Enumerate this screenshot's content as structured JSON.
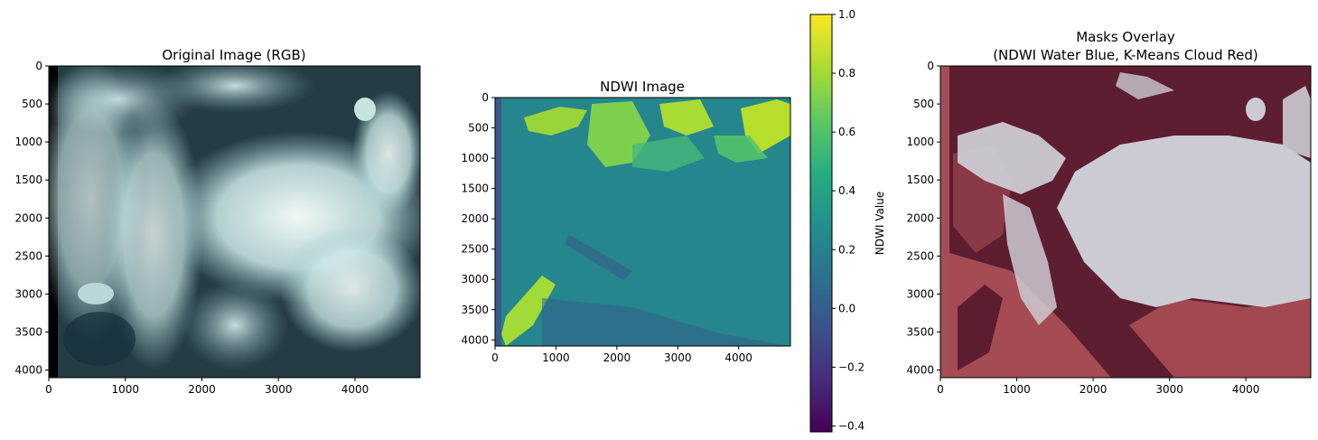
{
  "chart_data": [
    {
      "type": "image",
      "title": "Original Image (RGB)",
      "xlim": [
        0,
        4850
      ],
      "ylim": [
        4100,
        0
      ],
      "xticks": [
        0,
        1000,
        2000,
        3000,
        4000
      ],
      "yticks": [
        0,
        500,
        1000,
        1500,
        2000,
        2500,
        3000,
        3500,
        4000
      ],
      "image_description_colors": [
        "#0b1820",
        "#26404a",
        "#b9dde0",
        "#e6f5f3"
      ]
    },
    {
      "type": "heatmap",
      "title": "NDWI Image",
      "xlim": [
        0,
        4850
      ],
      "ylim": [
        4100,
        0
      ],
      "xticks": [
        0,
        1000,
        2000,
        3000,
        4000
      ],
      "yticks": [
        0,
        500,
        1000,
        1500,
        2000,
        2500,
        3000,
        3500,
        4000
      ],
      "colormap": "viridis",
      "colorbar": {
        "label": "NDWI Value",
        "vmin": -0.42,
        "vmax": 1.0,
        "ticks": [
          1.0,
          0.8,
          0.6,
          0.4,
          0.2,
          0.0,
          -0.2,
          -0.4
        ],
        "tick_labels": [
          "1.0",
          "0.8",
          "0.6",
          "0.4",
          "0.2",
          "0.0",
          "−0.2",
          "−0.4"
        ]
      }
    },
    {
      "type": "image",
      "title_line1": "Masks Overlay",
      "title_line2": "(NDWI Water Blue, K-Means Cloud Red)",
      "xlim": [
        0,
        4850
      ],
      "ylim": [
        4100,
        0
      ],
      "xticks": [
        0,
        1000,
        2000,
        3000,
        4000
      ],
      "yticks": [
        0,
        500,
        1000,
        1500,
        2000,
        2500,
        3000,
        3500,
        4000
      ],
      "image_description_colors": [
        "#5e1e30",
        "#a84a52",
        "#cccbd3"
      ]
    }
  ]
}
